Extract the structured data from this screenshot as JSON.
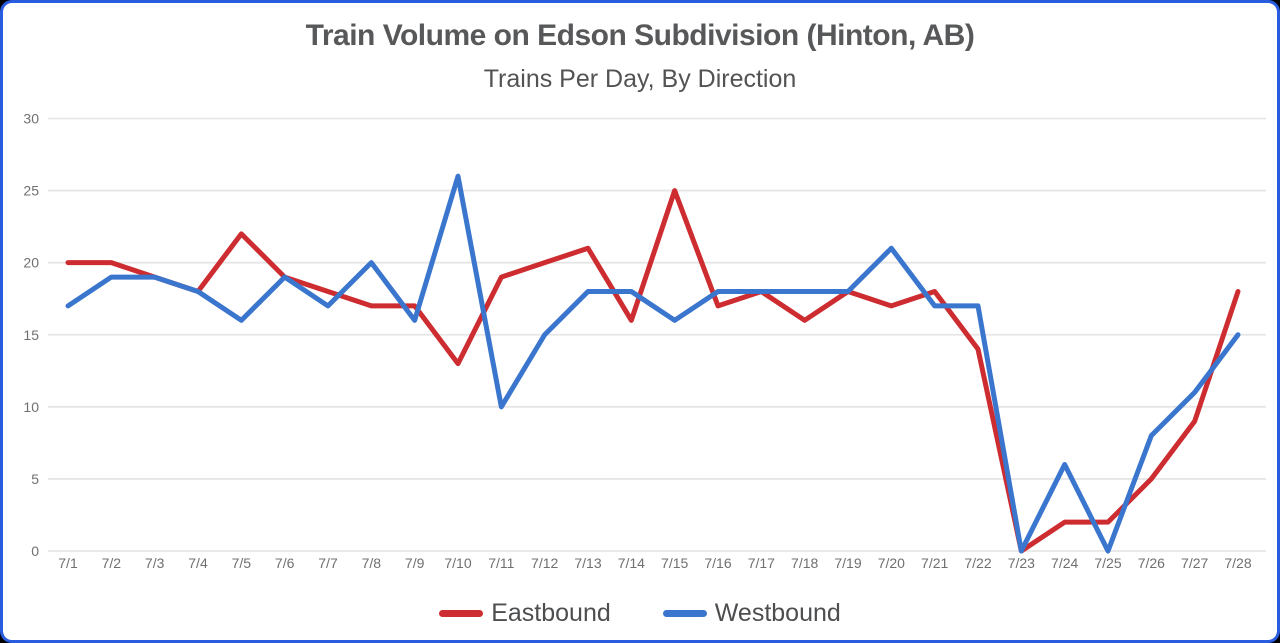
{
  "window": {
    "border_color": "#2a5ce0",
    "background_color": "#ffffff"
  },
  "chart_data": {
    "type": "line",
    "title": "Train Volume on Edson Subdivision (Hinton, AB)",
    "subtitle": "Trains Per Day, By Direction",
    "xlabel": "",
    "ylabel": "",
    "ylim": [
      0,
      30
    ],
    "yticks": [
      0,
      5,
      10,
      15,
      20,
      25,
      30
    ],
    "grid": "horizontal",
    "legend_position": "bottom",
    "categories": [
      "7/1",
      "7/2",
      "7/3",
      "7/4",
      "7/5",
      "7/6",
      "7/7",
      "7/8",
      "7/9",
      "7/10",
      "7/11",
      "7/12",
      "7/13",
      "7/14",
      "7/15",
      "7/16",
      "7/17",
      "7/18",
      "7/19",
      "7/20",
      "7/21",
      "7/22",
      "7/23",
      "7/24",
      "7/25",
      "7/26",
      "7/27",
      "7/28"
    ],
    "series": [
      {
        "name": "Eastbound",
        "color": "#cd2c30",
        "values": [
          20,
          20,
          19,
          18,
          22,
          19,
          18,
          17,
          17,
          13,
          19,
          20,
          21,
          16,
          25,
          17,
          18,
          16,
          18,
          17,
          18,
          14,
          0,
          2,
          2,
          5,
          9,
          18
        ]
      },
      {
        "name": "Westbound",
        "color": "#3a76cd",
        "values": [
          17,
          19,
          19,
          18,
          16,
          19,
          17,
          20,
          16,
          26,
          10,
          15,
          18,
          18,
          16,
          18,
          18,
          18,
          18,
          21,
          17,
          17,
          0,
          6,
          0,
          8,
          11,
          15
        ]
      }
    ],
    "style": {
      "gridline_color": "#e6e6e6",
      "tick_label_color": "#6f7072",
      "title_color": "#57585a",
      "subtitle_color": "#525355",
      "line_width": 5
    }
  }
}
